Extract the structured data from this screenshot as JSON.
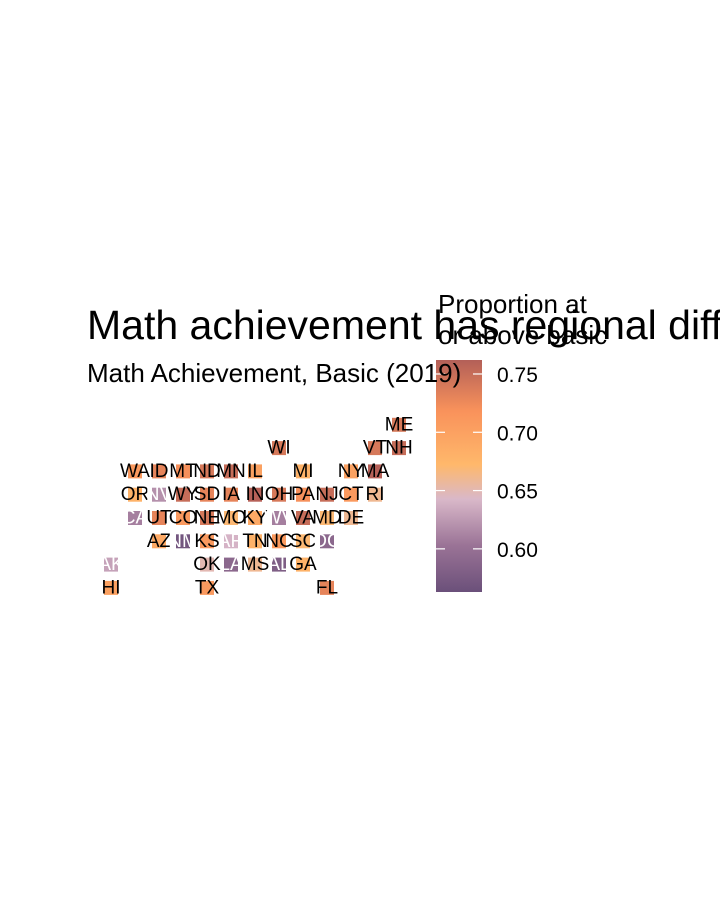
{
  "chart_data": {
    "type": "heatmap",
    "title": "Math achievement has regional differences",
    "subtitle": "Math Achievement, Basic (2019)",
    "legend": {
      "title_lines": [
        "Proportion at",
        "or above basic"
      ],
      "ticks": [
        0.6,
        0.65,
        0.7,
        0.75
      ],
      "tick_labels": [
        "0.60",
        "0.65",
        "0.70",
        "0.75"
      ],
      "range": [
        0.563,
        0.762
      ],
      "placement": "right"
    },
    "colors": {
      "scale": [
        "#6b507a",
        "#9a7396",
        "#d9b8c9",
        "#ffb86b",
        "#f9925b",
        "#b35f58"
      ],
      "scale_stops": [
        0.0,
        0.2,
        0.4,
        0.55,
        0.78,
        1.0
      ],
      "label_dark": "#000000",
      "label_light": "#ffffff"
    },
    "tiles": [
      {
        "state": "ME",
        "row": 1,
        "col": 12,
        "value": 0.74
      },
      {
        "state": "WI",
        "row": 2,
        "col": 7,
        "value": 0.74
      },
      {
        "state": "VT",
        "row": 2,
        "col": 11,
        "value": 0.74
      },
      {
        "state": "NH",
        "row": 2,
        "col": 12,
        "value": 0.75
      },
      {
        "state": "WA",
        "row": 3,
        "col": 1,
        "value": 0.71
      },
      {
        "state": "ID",
        "row": 3,
        "col": 2,
        "value": 0.73
      },
      {
        "state": "MT",
        "row": 3,
        "col": 3,
        "value": 0.72
      },
      {
        "state": "ND",
        "row": 3,
        "col": 4,
        "value": 0.74
      },
      {
        "state": "MN",
        "row": 3,
        "col": 5,
        "value": 0.75
      },
      {
        "state": "IL",
        "row": 3,
        "col": 6,
        "value": 0.7
      },
      {
        "state": "MI",
        "row": 3,
        "col": 8,
        "value": 0.68
      },
      {
        "state": "NY",
        "row": 3,
        "col": 10,
        "value": 0.7
      },
      {
        "state": "MA",
        "row": 3,
        "col": 11,
        "value": 0.76
      },
      {
        "state": "OR",
        "row": 4,
        "col": 1,
        "value": 0.68
      },
      {
        "state": "NV",
        "row": 4,
        "col": 2,
        "value": 0.62
      },
      {
        "state": "WY",
        "row": 4,
        "col": 3,
        "value": 0.75
      },
      {
        "state": "SD",
        "row": 4,
        "col": 4,
        "value": 0.73
      },
      {
        "state": "IA",
        "row": 4,
        "col": 5,
        "value": 0.73
      },
      {
        "state": "IN",
        "row": 4,
        "col": 6,
        "value": 0.76
      },
      {
        "state": "OH",
        "row": 4,
        "col": 7,
        "value": 0.74
      },
      {
        "state": "PA",
        "row": 4,
        "col": 8,
        "value": 0.72
      },
      {
        "state": "NJ",
        "row": 4,
        "col": 9,
        "value": 0.75
      },
      {
        "state": "CT",
        "row": 4,
        "col": 10,
        "value": 0.71
      },
      {
        "state": "RI",
        "row": 4,
        "col": 11,
        "value": 0.66
      },
      {
        "state": "CA",
        "row": 5,
        "col": 1,
        "value": 0.61
      },
      {
        "state": "UT",
        "row": 5,
        "col": 2,
        "value": 0.73
      },
      {
        "state": "CO",
        "row": 5,
        "col": 3,
        "value": 0.71
      },
      {
        "state": "NE",
        "row": 5,
        "col": 4,
        "value": 0.74
      },
      {
        "state": "MO",
        "row": 5,
        "col": 5,
        "value": 0.67
      },
      {
        "state": "KY",
        "row": 5,
        "col": 6,
        "value": 0.69
      },
      {
        "state": "WV",
        "row": 5,
        "col": 7,
        "value": 0.61
      },
      {
        "state": "VA",
        "row": 5,
        "col": 8,
        "value": 0.75
      },
      {
        "state": "MD",
        "row": 5,
        "col": 9,
        "value": 0.67
      },
      {
        "state": "DE",
        "row": 5,
        "col": 10,
        "value": 0.66
      },
      {
        "state": "AZ",
        "row": 6,
        "col": 2,
        "value": 0.69
      },
      {
        "state": "NM",
        "row": 6,
        "col": 3,
        "value": 0.57
      },
      {
        "state": "KS",
        "row": 6,
        "col": 4,
        "value": 0.71
      },
      {
        "state": "AR",
        "row": 6,
        "col": 5,
        "value": 0.64
      },
      {
        "state": "TN",
        "row": 6,
        "col": 6,
        "value": 0.68
      },
      {
        "state": "NC",
        "row": 6,
        "col": 7,
        "value": 0.71
      },
      {
        "state": "SC",
        "row": 6,
        "col": 8,
        "value": 0.67
      },
      {
        "state": "DC",
        "row": 6,
        "col": 9,
        "value": 0.59
      },
      {
        "state": "AK",
        "row": 7,
        "col": 0,
        "value": 0.63
      },
      {
        "state": "OK",
        "row": 7,
        "col": 4,
        "value": 0.65
      },
      {
        "state": "LA",
        "row": 7,
        "col": 5,
        "value": 0.59
      },
      {
        "state": "MS",
        "row": 7,
        "col": 6,
        "value": 0.66
      },
      {
        "state": "AL",
        "row": 7,
        "col": 7,
        "value": 0.58
      },
      {
        "state": "GA",
        "row": 7,
        "col": 8,
        "value": 0.68
      },
      {
        "state": "HI",
        "row": 8,
        "col": 0,
        "value": 0.7
      },
      {
        "state": "TX",
        "row": 8,
        "col": 4,
        "value": 0.71
      },
      {
        "state": "FL",
        "row": 8,
        "col": 9,
        "value": 0.73
      }
    ]
  }
}
